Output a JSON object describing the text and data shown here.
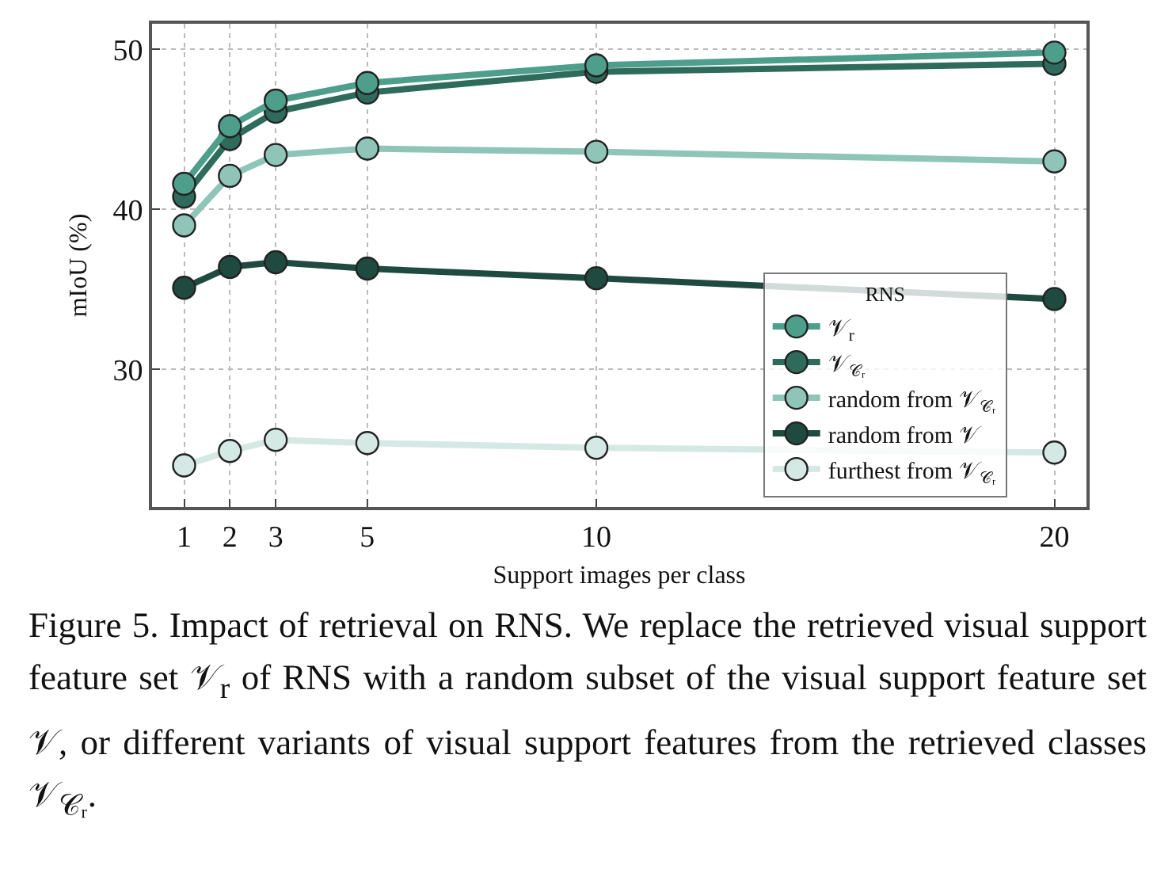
{
  "chart_data": {
    "type": "line",
    "xlabel": "Support images per class",
    "ylabel": "mIoU (%)",
    "legend_title": "RNS",
    "x": [
      1,
      2,
      3,
      5,
      10,
      20
    ],
    "series": [
      {
        "name": "𝒱$_{r}$",
        "color": "#4e9e8c",
        "values": [
          41.6,
          45.2,
          46.8,
          47.9,
          49.0,
          49.8
        ]
      },
      {
        "name": "𝒱$_{𝒞ᵣ}$",
        "color": "#2f6b5c",
        "values": [
          40.8,
          44.4,
          46.1,
          47.3,
          48.6,
          49.1
        ]
      },
      {
        "name": "random from 𝒱$_{𝒞ᵣ}$",
        "color": "#8fc5b8",
        "values": [
          39.0,
          42.1,
          43.4,
          43.8,
          43.6,
          43.0
        ]
      },
      {
        "name": "random from 𝒱",
        "color": "#1f4a40",
        "values": [
          35.1,
          36.4,
          36.7,
          36.3,
          35.7,
          34.4
        ]
      },
      {
        "name": "furthest from 𝒱$_{𝒞ᵣ}$",
        "color": "#d5e9e4",
        "values": [
          24.0,
          24.9,
          25.6,
          25.4,
          25.1,
          24.8
        ]
      }
    ],
    "xlim": [
      0.3,
      20.7
    ],
    "xticks": [
      1,
      2,
      3,
      5,
      10,
      20
    ],
    "ylim": [
      21.4,
      51.6
    ],
    "yticks": [
      30,
      40,
      50
    ],
    "grid": true,
    "legend": "bottom right",
    "marker": "circle",
    "line_style": "solid",
    "annotations": [
      "Figure 5. Impact of retrieval on RNS. We replace the retrieved visual support feature set 𝒱$_{r}$ of RNS with a random subset of the visual support feature set 𝒱, or different variants of visual support features from the retrieved classes 𝒱$_{𝒞ᵣ}$."
    ]
  }
}
